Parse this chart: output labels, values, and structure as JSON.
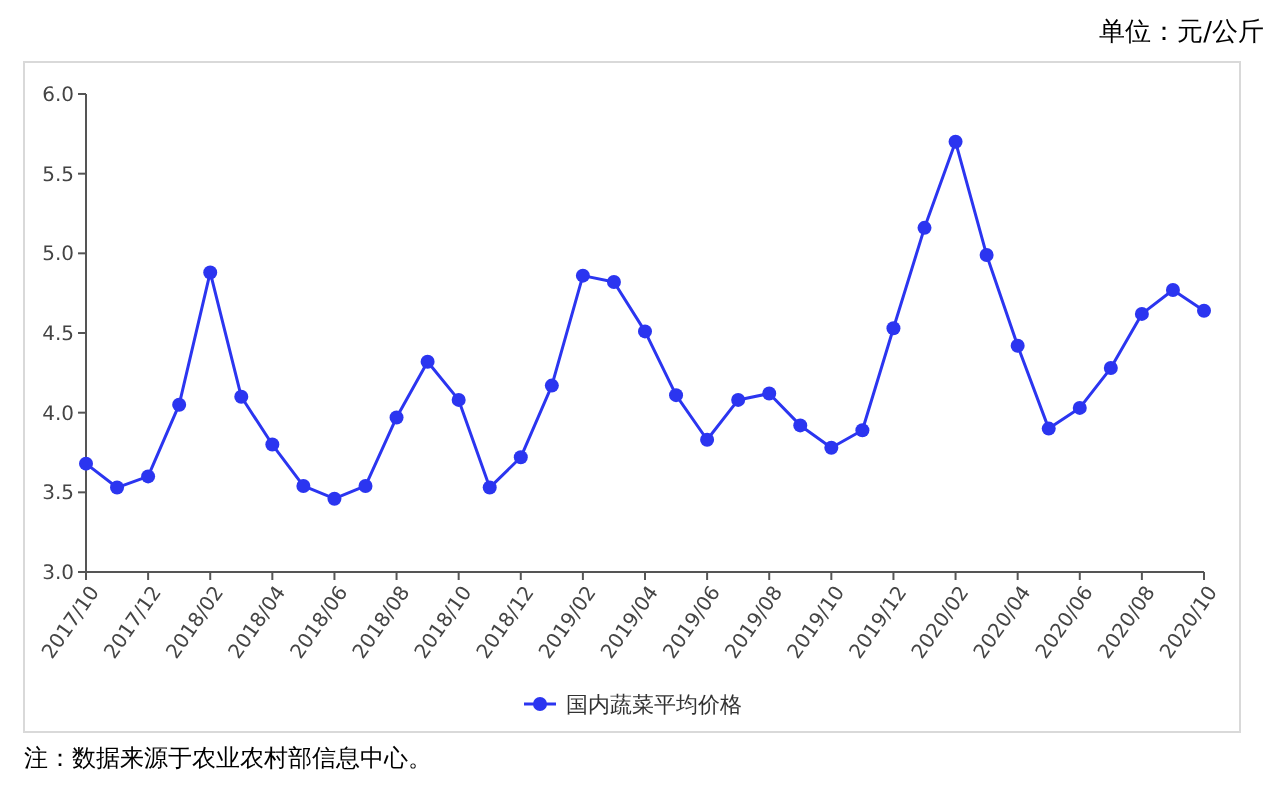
{
  "chart_data": {
    "type": "line",
    "ylabel": "单位：元/公斤",
    "categories": [
      "2017/10",
      null,
      "2017/12",
      null,
      "2018/02",
      null,
      "2018/04",
      null,
      "2018/06",
      null,
      "2018/08",
      null,
      "2018/10",
      null,
      "2018/12",
      null,
      "2019/02",
      null,
      "2019/04",
      null,
      "2019/06",
      null,
      "2019/08",
      null,
      "2019/10",
      null,
      "2019/12",
      null,
      "2020/02",
      null,
      "2020/04",
      null,
      "2020/06",
      null,
      "2020/08",
      null,
      "2020/10"
    ],
    "series": [
      {
        "name": "国内蔬菜平均价格",
        "color": "#2b35f0",
        "values": [
          3.68,
          3.53,
          3.6,
          4.05,
          4.88,
          4.1,
          3.8,
          3.54,
          3.46,
          3.54,
          3.97,
          4.32,
          4.08,
          3.53,
          3.72,
          4.17,
          4.86,
          4.82,
          4.51,
          4.11,
          3.83,
          4.08,
          4.12,
          3.92,
          3.78,
          3.89,
          4.53,
          5.16,
          5.7,
          4.99,
          4.42,
          3.9,
          4.03,
          4.28,
          4.62,
          4.77,
          4.64
        ]
      }
    ],
    "ylim": [
      3,
      6
    ],
    "yticks": [
      {
        "value": 3,
        "label": "3.0"
      },
      3.5,
      {
        "value": 4,
        "label": "4.0"
      },
      4.5,
      {
        "value": 5,
        "label": "5.0"
      },
      5.5,
      {
        "value": 6,
        "label": "6.0"
      }
    ],
    "grid": false,
    "legend": "bottom",
    "marker": "circle",
    "line_style": "solid",
    "annotations": [
      "注：数据来源于农业农村部信息中心。"
    ]
  }
}
